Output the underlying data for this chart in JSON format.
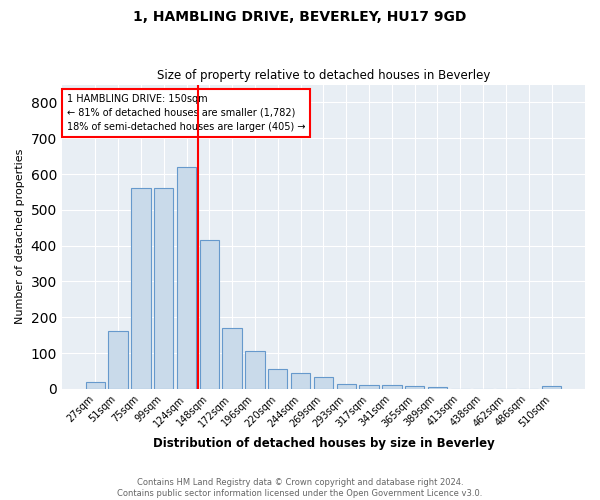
{
  "title1": "1, HAMBLING DRIVE, BEVERLEY, HU17 9GD",
  "title2": "Size of property relative to detached houses in Beverley",
  "xlabel": "Distribution of detached houses by size in Beverley",
  "ylabel": "Number of detached properties",
  "categories": [
    "27sqm",
    "51sqm",
    "75sqm",
    "99sqm",
    "124sqm",
    "148sqm",
    "172sqm",
    "196sqm",
    "220sqm",
    "244sqm",
    "269sqm",
    "293sqm",
    "317sqm",
    "341sqm",
    "365sqm",
    "389sqm",
    "413sqm",
    "438sqm",
    "462sqm",
    "486sqm",
    "510sqm"
  ],
  "values": [
    20,
    163,
    560,
    560,
    620,
    415,
    170,
    105,
    55,
    43,
    32,
    15,
    10,
    10,
    8,
    5,
    0,
    0,
    0,
    0,
    7
  ],
  "bar_color": "#c9daea",
  "bar_edge_color": "#6699cc",
  "red_line_index": 5,
  "annotation_text": "1 HAMBLING DRIVE: 150sqm\n← 81% of detached houses are smaller (1,782)\n18% of semi-detached houses are larger (405) →",
  "ylim": [
    0,
    850
  ],
  "yticks": [
    0,
    100,
    200,
    300,
    400,
    500,
    600,
    700,
    800
  ],
  "footnote": "Contains HM Land Registry data © Crown copyright and database right 2024.\nContains public sector information licensed under the Open Government Licence v3.0.",
  "background_color": "#e8eef4",
  "title1_fontsize": 10,
  "title2_fontsize": 8.5,
  "xlabel_fontsize": 8.5,
  "ylabel_fontsize": 8,
  "tick_fontsize": 7,
  "annot_fontsize": 7,
  "footnote_fontsize": 6,
  "footnote_color": "#666666"
}
